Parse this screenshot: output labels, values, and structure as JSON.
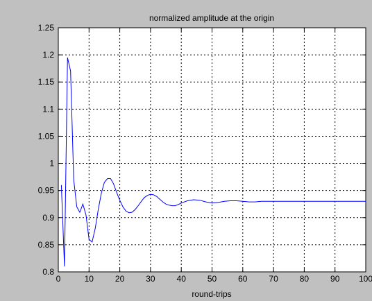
{
  "chart_data": {
    "type": "line",
    "title": "normalized amplitude at the origin",
    "xlabel": "round-trips",
    "ylabel": "",
    "xlim": [
      0,
      100
    ],
    "ylim": [
      0.8,
      1.25
    ],
    "x_ticks": [
      0,
      10,
      20,
      30,
      40,
      50,
      60,
      70,
      80,
      90,
      100
    ],
    "y_ticks": [
      0.8,
      0.85,
      0.9,
      0.95,
      1,
      1.05,
      1.1,
      1.15,
      1.2,
      1.25
    ],
    "x_tick_labels": [
      "0",
      "10",
      "20",
      "30",
      "40",
      "50",
      "60",
      "70",
      "80",
      "90",
      "100"
    ],
    "y_tick_labels": [
      "0.8",
      "0.85",
      "0.9",
      "0.95",
      "1",
      "1.05",
      "1.1",
      "1.15",
      "1.2",
      "1.25"
    ],
    "grid": true,
    "colors": {
      "background": "#c0c0c0",
      "plot_area": "#ffffff",
      "line": "#0000ff",
      "grid": "#000000"
    },
    "series": [
      {
        "x": [
          1,
          2,
          3,
          4,
          5,
          6,
          7,
          8,
          9,
          10,
          11,
          12,
          13,
          14,
          15,
          16,
          17,
          18,
          19,
          20,
          21,
          22,
          23,
          24,
          25,
          26,
          27,
          28,
          29,
          30,
          31,
          32,
          33,
          34,
          35,
          36,
          37,
          38,
          39,
          40,
          42,
          44,
          46,
          48,
          50,
          52,
          54,
          56,
          58,
          60,
          62,
          64,
          66,
          68,
          70,
          75,
          80,
          85,
          90,
          95,
          100
        ],
        "values": [
          0.96,
          0.81,
          1.195,
          1.17,
          0.97,
          0.92,
          0.91,
          0.925,
          0.905,
          0.86,
          0.855,
          0.88,
          0.915,
          0.945,
          0.965,
          0.972,
          0.972,
          0.962,
          0.946,
          0.932,
          0.92,
          0.912,
          0.909,
          0.91,
          0.915,
          0.922,
          0.93,
          0.937,
          0.941,
          0.943,
          0.942,
          0.939,
          0.934,
          0.929,
          0.925,
          0.923,
          0.922,
          0.922,
          0.924,
          0.927,
          0.931,
          0.933,
          0.932,
          0.929,
          0.927,
          0.928,
          0.93,
          0.931,
          0.931,
          0.93,
          0.929,
          0.929,
          0.93,
          0.93,
          0.93,
          0.93,
          0.93,
          0.93,
          0.93,
          0.93,
          0.93
        ]
      }
    ]
  }
}
